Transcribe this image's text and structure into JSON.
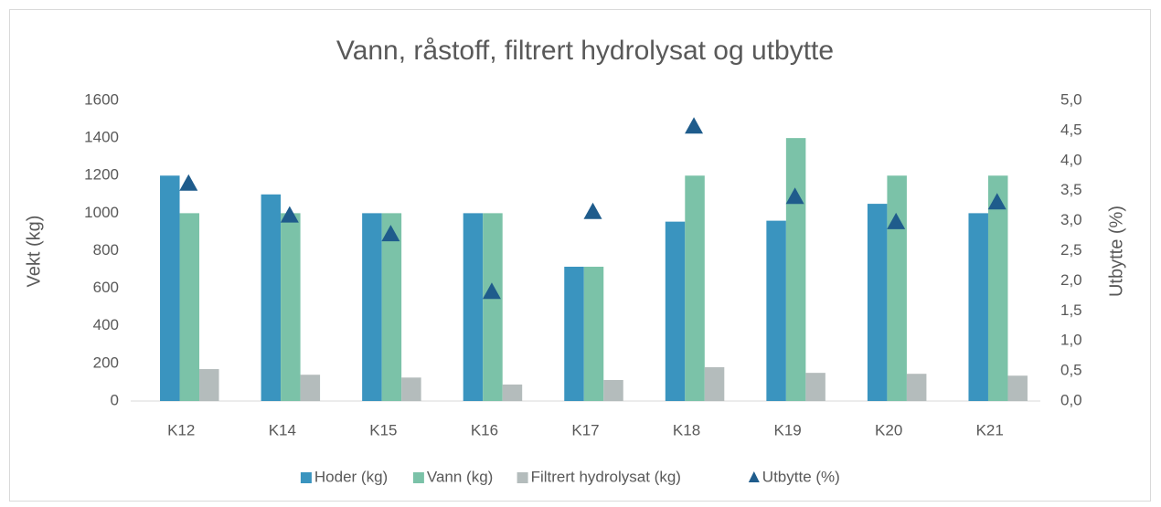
{
  "chart_data": {
    "type": "bar",
    "title": "Vann, råstoff, filtrert hydrolysat og utbytte",
    "ylabel": "Vekt (kg)",
    "y2label": "Utbytte (%)",
    "categories": [
      "K12",
      "K14",
      "K15",
      "K16",
      "K17",
      "K18",
      "K19",
      "K20",
      "K21"
    ],
    "series": [
      {
        "name": "Hoder (kg)",
        "color": "#3a94bf",
        "values": [
          1200,
          1100,
          1000,
          1000,
          715,
          955,
          960,
          1050,
          1000
        ]
      },
      {
        "name": "Vann (kg)",
        "color": "#7bc2a8",
        "values": [
          1000,
          1000,
          1000,
          1000,
          715,
          1200,
          1400,
          1200,
          1200
        ]
      },
      {
        "name": "Filtrert hydrolysat (kg)",
        "color": "#b4bcbc",
        "values": [
          170,
          140,
          125,
          88,
          112,
          180,
          150,
          145,
          135
        ]
      },
      {
        "name": "Utbytte (%)",
        "color": "#1f5c8c",
        "type": "scatter",
        "marker": "triangle",
        "axis": "y2",
        "values": [
          3.62,
          3.09,
          2.78,
          1.82,
          3.15,
          4.57,
          3.4,
          2.98,
          3.31
        ]
      }
    ],
    "ylim": [
      0,
      1600
    ],
    "yticks": [
      0,
      200,
      400,
      600,
      800,
      1000,
      1200,
      1400,
      1600
    ],
    "y2lim": [
      0,
      5
    ],
    "y2ticks": [
      {
        "value": 0,
        "label": "0,0"
      },
      {
        "value": 0.5,
        "label": "0,5"
      },
      {
        "value": 1,
        "label": "1,0"
      },
      {
        "value": 1.5,
        "label": "1,5"
      },
      {
        "value": 2,
        "label": "2,0"
      },
      {
        "value": 2.5,
        "label": "2,5"
      },
      {
        "value": 3,
        "label": "3,0"
      },
      {
        "value": 3.5,
        "label": "3,5"
      },
      {
        "value": 4,
        "label": "4,0"
      },
      {
        "value": 4.5,
        "label": "4,5"
      },
      {
        "value": 5,
        "label": "5,0"
      }
    ],
    "grid": false,
    "legend": "bottom"
  }
}
